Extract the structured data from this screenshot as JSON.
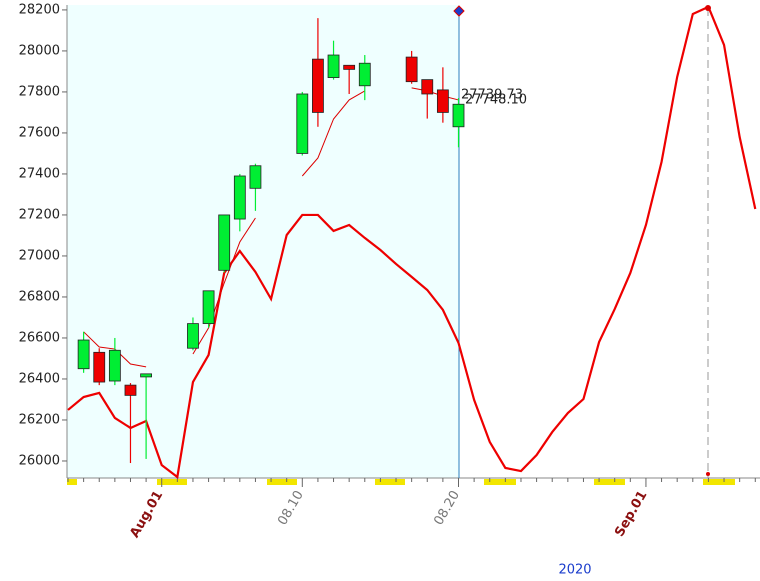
{
  "chart_data": {
    "type": "candlestick",
    "categories": [
      null,
      null,
      null,
      null,
      null,
      null,
      "Aug.01",
      null,
      null,
      null,
      null,
      null,
      null,
      null,
      null,
      "08.10",
      null,
      null,
      null,
      null,
      null,
      null,
      null,
      null,
      null,
      "08.20",
      null,
      null,
      null,
      null,
      null,
      null,
      null,
      null,
      null,
      null,
      null,
      "Sep.01",
      null,
      null,
      null,
      null,
      null,
      null,
      null
    ],
    "open": [
      null,
      26450,
      26530,
      26390,
      26370,
      26410,
      null,
      null,
      26550,
      26670,
      26930,
      27180,
      27330,
      null,
      null,
      27500,
      27960,
      27870,
      27930,
      27830,
      null,
      null,
      27970,
      27860,
      27810,
      27630,
      null,
      null,
      null,
      null,
      null,
      null,
      null,
      null,
      null,
      null,
      null,
      null,
      null,
      null,
      null,
      null,
      null,
      null,
      null
    ],
    "high": [
      null,
      26630,
      26550,
      26600,
      26380,
      26425,
      null,
      null,
      26700,
      26830,
      27200,
      27400,
      27450,
      null,
      null,
      27800,
      28160,
      28050,
      27930,
      27980,
      null,
      null,
      28000,
      27860,
      27920,
      27770,
      null,
      null,
      null,
      null,
      null,
      null,
      null,
      null,
      null,
      null,
      null,
      null,
      null,
      null,
      null,
      null,
      null,
      null,
      null
    ],
    "low": [
      null,
      26430,
      26370,
      26370,
      25990,
      26010,
      null,
      null,
      26540,
      26650,
      26920,
      27120,
      27220,
      null,
      null,
      27490,
      27630,
      27860,
      27790,
      27760,
      null,
      null,
      27840,
      27670,
      27650,
      27530,
      null,
      null,
      null,
      null,
      null,
      null,
      null,
      null,
      null,
      null,
      null,
      null,
      null,
      null,
      null,
      null,
      null,
      null,
      null
    ],
    "close": [
      null,
      26590,
      26385,
      26540,
      26320,
      26425,
      null,
      null,
      26670,
      26830,
      27200,
      27390,
      27440,
      null,
      null,
      27790,
      27700,
      27980,
      27910,
      27940,
      null,
      null,
      27850,
      27790,
      27700,
      27740,
      null,
      null,
      null,
      null,
      null,
      null,
      null,
      null,
      null,
      null,
      null,
      null,
      null,
      null,
      null,
      null,
      null,
      null,
      null
    ],
    "up_color": "#00ee33",
    "down_color": "#ee0000",
    "ma": {
      "color": "#dd0000",
      "values": [
        null,
        26630,
        26556,
        26546,
        26473,
        26459,
        null,
        null,
        26522,
        26649,
        26868,
        27068,
        27185,
        null,
        null,
        27390,
        27478,
        27668,
        27761,
        27805,
        null,
        null,
        27820,
        27805,
        27780,
        27761,
        null,
        null,
        null,
        null,
        null,
        null,
        null,
        null,
        null,
        null,
        null,
        null,
        null,
        null,
        null,
        null,
        null,
        null,
        null
      ]
    },
    "forecast": {
      "color": "#ee0000",
      "values": [
        26249,
        26312,
        26332,
        26210,
        26161,
        26195,
        25980,
        25922,
        26385,
        26517,
        26917,
        27024,
        26922,
        26790,
        27102,
        27200,
        27200,
        27122,
        27151,
        27088,
        27029,
        26961,
        26898,
        26834,
        26737,
        26576,
        26298,
        26093,
        25966,
        25951,
        26029,
        26141,
        26234,
        26302,
        26580,
        26741,
        26917,
        27151,
        27459,
        27873,
        28180,
        28215,
        28029,
        27580,
        27229
      ]
    },
    "annotations": [
      "27739.73",
      "27748.10"
    ],
    "year": "2020",
    "ylim": [
      25917,
      28224
    ],
    "yticks": [
      26000,
      26200,
      26400,
      26600,
      26800,
      27000,
      27200,
      27400,
      27600,
      27800,
      28000,
      28200
    ]
  }
}
